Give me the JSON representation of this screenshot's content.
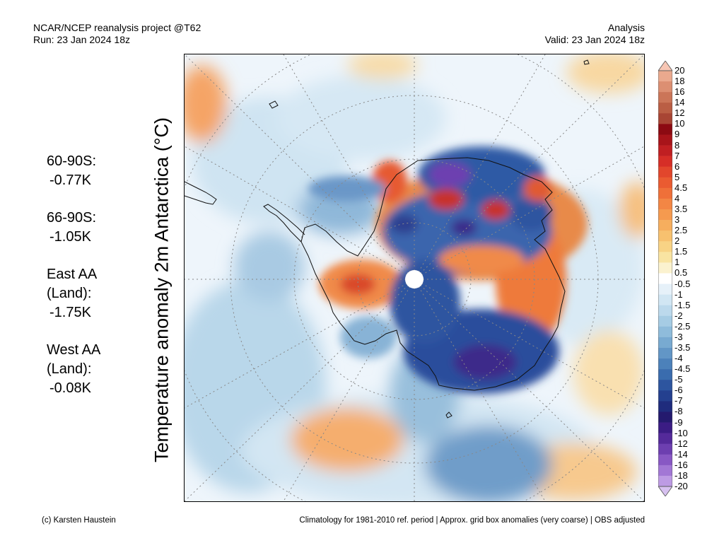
{
  "header": {
    "project": "NCAR/NCEP reanalysis project @T62",
    "run": "Run: 23 Jan 2024 18z",
    "type": "Analysis",
    "valid": "Valid: 23 Jan 2024 18z"
  },
  "map": {
    "title": "Temperature anomaly 2m Antarctica (°C)"
  },
  "stats": [
    {
      "region": "60-90S:",
      "value": "-0.77K"
    },
    {
      "region": "66-90S:",
      "value": "-1.05K"
    },
    {
      "region": "East AA\n(Land):",
      "value": "-1.75K"
    },
    {
      "region": "West AA\n(Land):",
      "value": "-0.08K"
    }
  ],
  "colorbar": {
    "labels": [
      "20",
      "18",
      "16",
      "14",
      "12",
      "10",
      "9",
      "8",
      "7",
      "6",
      "5",
      "4.5",
      "4",
      "3.5",
      "3",
      "2.5",
      "2",
      "1.5",
      "1",
      "0.5",
      "-0.5",
      "-1",
      "-1.5",
      "-2",
      "-2.5",
      "-3",
      "-3.5",
      "-4",
      "-4.5",
      "-5",
      "-6",
      "-7",
      "-8",
      "-9",
      "-10",
      "-12",
      "-14",
      "-16",
      "-18",
      "-20"
    ],
    "colors": [
      "#f7c6b4",
      "#eaa98e",
      "#dc8f72",
      "#cb7558",
      "#ba5e44",
      "#a84534",
      "#8c0a12",
      "#a8141a",
      "#c01f22",
      "#d62e27",
      "#e2462c",
      "#ea5b31",
      "#ef7039",
      "#f38644",
      "#f59a4f",
      "#f6ae5e",
      "#f7c16f",
      "#f8d385",
      "#f9e4a2",
      "#fbf2cf",
      "#ffffff",
      "#e6f1f9",
      "#d1e6f3",
      "#bcd9ec",
      "#a6cce4",
      "#8fbcdb",
      "#78aad1",
      "#6296c6",
      "#4c81ba",
      "#3a6cae",
      "#2d559f",
      "#24408f",
      "#1f2c7d",
      "#241a6e",
      "#3b1c84",
      "#542a9a",
      "#6d3fb0",
      "#8858c4",
      "#a277d5",
      "#bd9be4",
      "#d7c1f0"
    ]
  },
  "footer": {
    "left": "(c) Karsten Haustein",
    "right": "Climatology for 1981-2010 ref. period | Approx. grid box anomalies (very coarse) | OBS adjusted"
  }
}
